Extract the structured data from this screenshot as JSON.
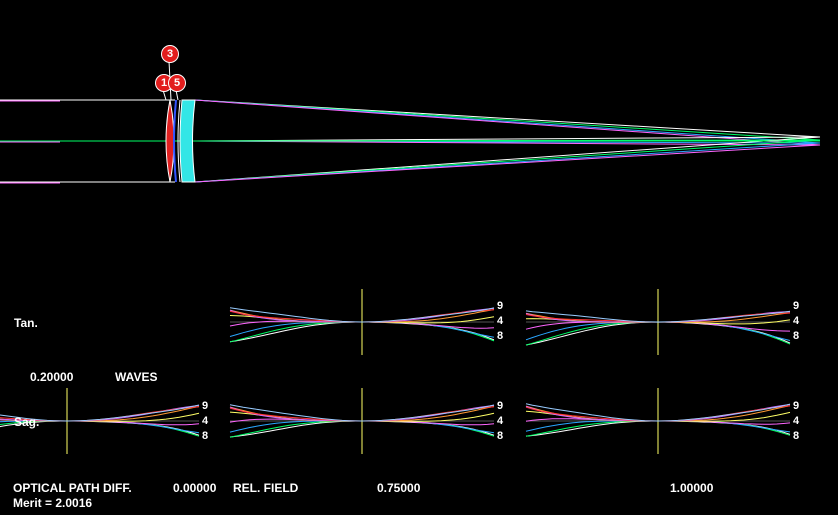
{
  "labels": {
    "tan": "Tan.",
    "sag": "Sag.",
    "scale_value": "0.20000",
    "scale_unit": "WAVES",
    "opd": "OPTICAL PATH DIFF.",
    "rel_field": "REL. FIELD",
    "merit": "Merit = 2.0016"
  },
  "fields": [
    "0.00000",
    "0.75000",
    "1.00000"
  ],
  "surface_badges": [
    "1",
    "3",
    "5"
  ],
  "wavelength_numbers": [
    "9",
    "4",
    "8"
  ],
  "colors": {
    "background": "#000000",
    "lens1": "#e02020",
    "lens_rear": "#33e6e6",
    "badge": "#e21d1d",
    "curves": [
      "#ffffff",
      "#00ff66",
      "#2aa6ff",
      "#ff66ff",
      "#ffff66",
      "#ff9933",
      "#cc66ff",
      "#ff3333",
      "#99ccff"
    ]
  }
}
